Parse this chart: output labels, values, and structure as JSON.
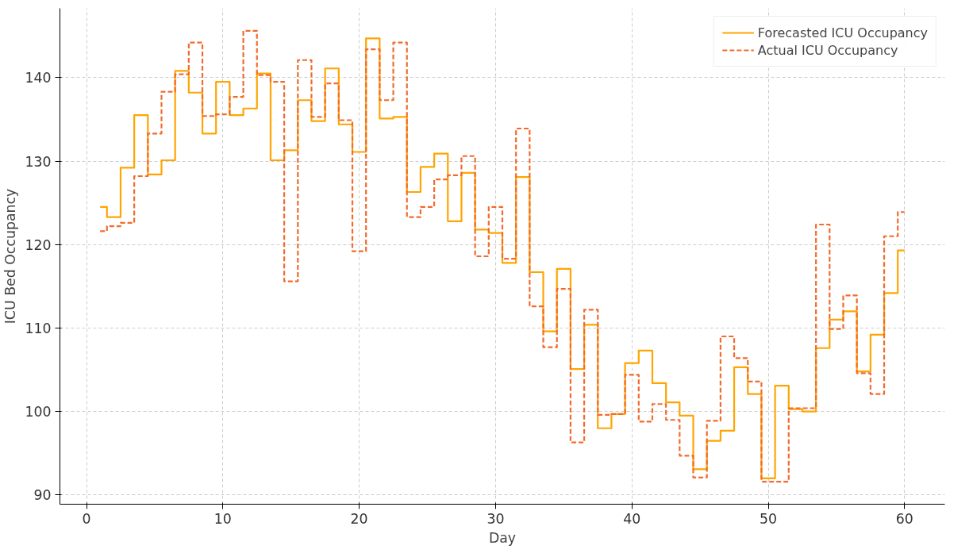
{
  "chart_data": {
    "type": "step",
    "xlabel": "Day",
    "ylabel": "ICU Bed Occupancy",
    "x": [
      1,
      2,
      3,
      4,
      5,
      6,
      7,
      8,
      9,
      10,
      11,
      12,
      13,
      14,
      15,
      16,
      17,
      18,
      19,
      20,
      21,
      22,
      23,
      24,
      25,
      26,
      27,
      28,
      29,
      30,
      31,
      32,
      33,
      34,
      35,
      36,
      37,
      38,
      39,
      40,
      41,
      42,
      43,
      44,
      45,
      46,
      47,
      48,
      49,
      50,
      51,
      52,
      53,
      54,
      55,
      56,
      57,
      58,
      59,
      60
    ],
    "series": [
      {
        "name": "Forecasted ICU Occupancy",
        "color": "#ffa500",
        "line_style": "solid",
        "values": [
          124.5,
          123.3,
          129.2,
          135.5,
          128.4,
          130.1,
          140.8,
          138.2,
          133.3,
          139.5,
          135.5,
          136.3,
          140.5,
          130.1,
          131.3,
          137.3,
          134.8,
          141.1,
          134.4,
          131.1,
          144.7,
          135.1,
          135.3,
          126.3,
          129.3,
          130.9,
          122.8,
          128.6,
          121.8,
          121.4,
          117.8,
          128.1,
          116.7,
          109.6,
          117.1,
          105.1,
          110.4,
          98.0,
          99.7,
          105.8,
          107.3,
          103.4,
          101.1,
          99.5,
          93.1,
          96.5,
          97.7,
          105.3,
          102.1,
          92.0,
          103.1,
          100.3,
          100.0,
          107.6,
          111.0,
          112.0,
          104.8,
          109.2,
          114.2,
          119.3
        ]
      },
      {
        "name": "Actual ICU Occupancy",
        "color": "#f26b2e",
        "line_style": "dashed",
        "values": [
          121.6,
          122.2,
          122.6,
          128.2,
          133.3,
          138.3,
          140.4,
          144.2,
          135.4,
          135.6,
          137.7,
          145.6,
          140.3,
          139.5,
          115.6,
          142.1,
          135.3,
          139.3,
          134.9,
          119.2,
          143.4,
          137.3,
          144.2,
          123.3,
          124.5,
          127.8,
          128.3,
          130.6,
          118.6,
          124.5,
          118.3,
          133.9,
          112.6,
          107.7,
          114.7,
          96.3,
          112.2,
          99.6,
          99.7,
          104.4,
          98.8,
          100.9,
          99.0,
          94.7,
          92.1,
          98.9,
          109.0,
          106.4,
          103.6,
          91.6,
          91.6,
          100.4,
          100.4,
          122.4,
          109.9,
          113.9,
          104.6,
          102.1,
          121.0,
          123.9
        ]
      }
    ],
    "xlim": [
      -1.95,
      62.95
    ],
    "ylim": [
      88.9,
      148.3
    ],
    "xticks": [
      0,
      10,
      20,
      30,
      40,
      50,
      60
    ],
    "yticks": [
      90,
      100,
      110,
      120,
      130,
      140
    ],
    "grid": true,
    "legend": "top right"
  }
}
